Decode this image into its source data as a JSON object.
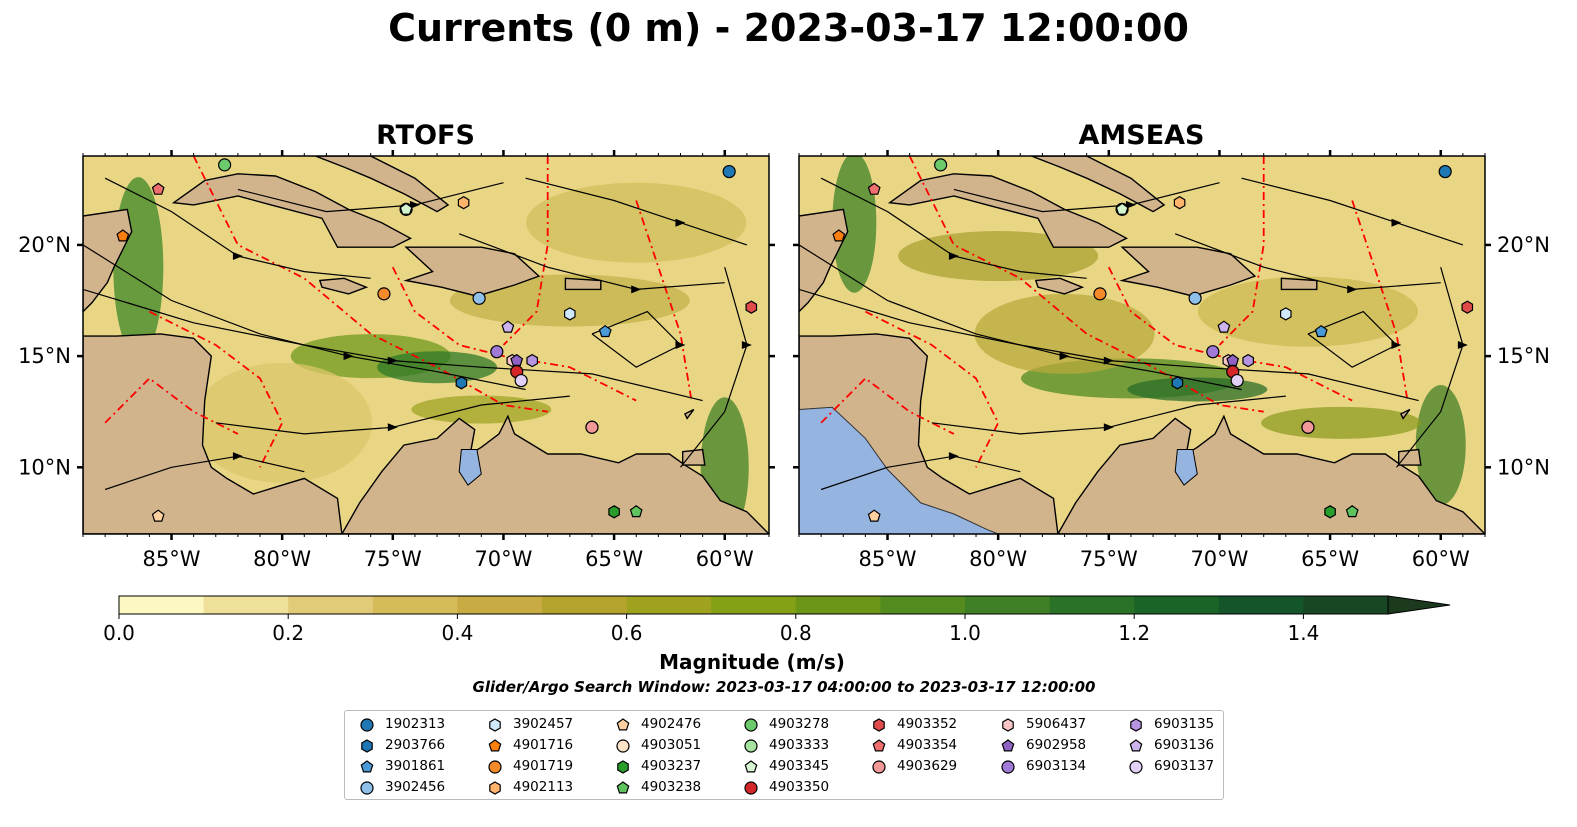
{
  "title": "Currents (0 m) - 2023-03-17 12:00:00",
  "panels": [
    {
      "title": "RTOFS"
    },
    {
      "title": "AMSEAS"
    }
  ],
  "axes": {
    "lon_ticks": [
      "85°W",
      "80°W",
      "75°W",
      "70°W",
      "65°W",
      "60°W"
    ],
    "lat_ticks": [
      "20°N",
      "15°N",
      "10°N"
    ]
  },
  "colorbar": {
    "ticks": [
      "0.0",
      "0.2",
      "0.4",
      "0.6",
      "0.8",
      "1.0",
      "1.2",
      "1.4"
    ],
    "label": "Magnitude (m/s)",
    "colors": [
      "#fdf7c1",
      "#f0e19a",
      "#e2cb78",
      "#d6bb5a",
      "#c8ab42",
      "#b4a32c",
      "#9ea21e",
      "#84a017",
      "#6c9618",
      "#548b1f",
      "#3f7f25",
      "#2b7229",
      "#1b6428",
      "#15552a",
      "#194724",
      "#1b3a1e"
    ]
  },
  "search_window": "Glider/Argo Search Window: 2023-03-17 04:00:00 to 2023-03-17 12:00:00",
  "chart_data": {
    "type": "map",
    "title": "Currents (0 m) - 2023-03-17 12:00:00",
    "variable": "Magnitude (m/s)",
    "depth_m": 0,
    "extent": {
      "lon": [
        -89,
        -58
      ],
      "lat": [
        7,
        24
      ]
    },
    "colorbar_range": [
      0.0,
      1.5
    ],
    "colorbar_extend": "max",
    "panels": [
      "RTOFS",
      "AMSEAS"
    ],
    "floats": [
      {
        "id": "1902313",
        "marker": "circle",
        "color": "#1f77b4",
        "lon": -59.8,
        "lat": 23.3
      },
      {
        "id": "2903766",
        "marker": "hexagon",
        "color": "#1f77b4",
        "lon": -71.9,
        "lat": 13.8
      },
      {
        "id": "3901861",
        "marker": "pentagon",
        "color": "#4a9ad8",
        "lon": -65.4,
        "lat": 16.1
      },
      {
        "id": "3902456",
        "marker": "circle",
        "color": "#8ec0ea",
        "lon": -71.1,
        "lat": 17.6
      },
      {
        "id": "3902457",
        "marker": "hexagon",
        "color": "#cfe9fb",
        "lon": -67.0,
        "lat": 16.9
      },
      {
        "id": "4901716",
        "marker": "pentagon",
        "color": "#ff7f0e",
        "lon": -87.2,
        "lat": 20.4
      },
      {
        "id": "4901719",
        "marker": "circle",
        "color": "#f58a2b",
        "lon": -75.4,
        "lat": 17.8
      },
      {
        "id": "4902113",
        "marker": "hexagon",
        "color": "#ffb36b",
        "lon": -71.8,
        "lat": 21.9
      },
      {
        "id": "4902476",
        "marker": "pentagon",
        "color": "#ffd0a0",
        "lon": -85.6,
        "lat": 7.8
      },
      {
        "id": "4903051",
        "marker": "circle",
        "color": "#ffe4c8",
        "lon": -66.0,
        "lat": 11.8
      },
      {
        "id": "4903237",
        "marker": "hexagon",
        "color": "#2a9d2a",
        "lon": -65.0,
        "lat": 8.0
      },
      {
        "id": "4903238",
        "marker": "pentagon",
        "color": "#5fc45f",
        "lon": -64.0,
        "lat": 8.0
      },
      {
        "id": "4903278",
        "marker": "circle",
        "color": "#6cc96c",
        "lon": -82.6,
        "lat": 23.6
      },
      {
        "id": "4903333",
        "marker": "circle",
        "color": "#a6e3a0",
        "lon": -74.4,
        "lat": 21.6
      },
      {
        "id": "4903345",
        "marker": "pentagon",
        "color": "#d4f5cf",
        "lon": -74.4,
        "lat": 21.6
      },
      {
        "id": "4903350",
        "marker": "circle",
        "color": "#d62728",
        "lon": -69.4,
        "lat": 14.3
      },
      {
        "id": "4903352",
        "marker": "hexagon",
        "color": "#e04b4b",
        "lon": -58.8,
        "lat": 17.2
      },
      {
        "id": "4903354",
        "marker": "pentagon",
        "color": "#ef6f6f",
        "lon": -85.6,
        "lat": 22.5
      },
      {
        "id": "4903629",
        "marker": "circle",
        "color": "#f29898",
        "lon": -66.0,
        "lat": 11.8
      },
      {
        "id": "5906437",
        "marker": "hexagon",
        "color": "#f9c6c6",
        "lon": -69.6,
        "lat": 14.8
      },
      {
        "id": "6902958",
        "marker": "pentagon",
        "color": "#8f62c4",
        "lon": -69.4,
        "lat": 14.8
      },
      {
        "id": "6903134",
        "marker": "circle",
        "color": "#a07ad6",
        "lon": -70.3,
        "lat": 15.2
      },
      {
        "id": "6903135",
        "marker": "hexagon",
        "color": "#b594e0",
        "lon": -68.7,
        "lat": 14.8
      },
      {
        "id": "6903136",
        "marker": "pentagon",
        "color": "#cdb4ef",
        "lon": -69.8,
        "lat": 16.3
      },
      {
        "id": "6903137",
        "marker": "circle",
        "color": "#e2d0f6",
        "lon": -69.2,
        "lat": 13.9
      }
    ],
    "legend_columns": [
      [
        "1902313",
        "2903766",
        "3901861",
        "3902456"
      ],
      [
        "3902457",
        "4901716",
        "4901719",
        "4902113"
      ],
      [
        "4902476",
        "4903051",
        "4903237",
        "4903238"
      ],
      [
        "4903278",
        "4903333",
        "4903345",
        "4903350"
      ],
      [
        "4903352",
        "4903354",
        "4903629"
      ],
      [
        "5906437",
        "6902958",
        "6903134"
      ],
      [
        "6903135",
        "6903136",
        "6903137"
      ]
    ]
  }
}
